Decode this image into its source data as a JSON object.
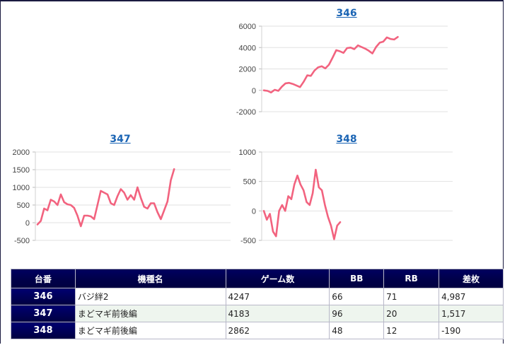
{
  "colors": {
    "line": "#f2637f",
    "link": "#1a64b4",
    "header_bg": "#00004a",
    "negative": "#e00000"
  },
  "charts": [
    {
      "id": "346"
    },
    {
      "id": "347"
    },
    {
      "id": "348"
    }
  ],
  "chart_data": [
    {
      "type": "line",
      "title": "346",
      "ylim": [
        -2000,
        6000
      ],
      "yticks": [
        "6000",
        "4000",
        "2000",
        "0",
        "-2000"
      ],
      "grid": true,
      "values": [
        0,
        -50,
        -200,
        50,
        -50,
        350,
        650,
        700,
        600,
        450,
        300,
        800,
        1400,
        1350,
        1850,
        2150,
        2250,
        2050,
        2400,
        3050,
        3750,
        3650,
        3500,
        3950,
        4000,
        3850,
        4200,
        4050,
        3900,
        3700,
        3450,
        4050,
        4450,
        4550,
        4950,
        4800,
        4750,
        4987
      ]
    },
    {
      "type": "line",
      "title": "347",
      "ylim": [
        -500,
        2000
      ],
      "yticks": [
        "2000",
        "1500",
        "1000",
        "500",
        "0",
        "-500"
      ],
      "grid": true,
      "values": [
        -50,
        50,
        400,
        350,
        650,
        600,
        500,
        800,
        580,
        520,
        500,
        420,
        200,
        -100,
        200,
        200,
        180,
        100,
        500,
        900,
        850,
        800,
        550,
        500,
        750,
        950,
        850,
        650,
        780,
        650,
        1000,
        700,
        450,
        400,
        550,
        550,
        300,
        100,
        350,
        600,
        1200,
        1517
      ]
    },
    {
      "type": "line",
      "title": "348",
      "ylim": [
        -500,
        1000
      ],
      "yticks": [
        "1000",
        "500",
        "0",
        "-500"
      ],
      "grid": true,
      "values": [
        0,
        -150,
        -50,
        -350,
        -430,
        0,
        100,
        0,
        250,
        200,
        450,
        600,
        450,
        350,
        150,
        100,
        300,
        700,
        400,
        350,
        100,
        -100,
        -250,
        -480,
        -250,
        -190
      ]
    }
  ],
  "table": {
    "headers": [
      "台番",
      "機種名",
      "ゲーム数",
      "BB",
      "RB",
      "差枚"
    ],
    "rows": [
      {
        "id": "346",
        "name": "バジ絆2",
        "games": "4247",
        "bb": "66",
        "rb": "71",
        "diff": "4,987",
        "negative": false
      },
      {
        "id": "347",
        "name": "まどマギ前後編",
        "games": "4183",
        "bb": "96",
        "rb": "20",
        "diff": "1,517",
        "negative": false
      },
      {
        "id": "348",
        "name": "まどマギ前後編",
        "games": "2862",
        "bb": "48",
        "rb": "12",
        "diff": "-190",
        "negative": true
      }
    ]
  }
}
